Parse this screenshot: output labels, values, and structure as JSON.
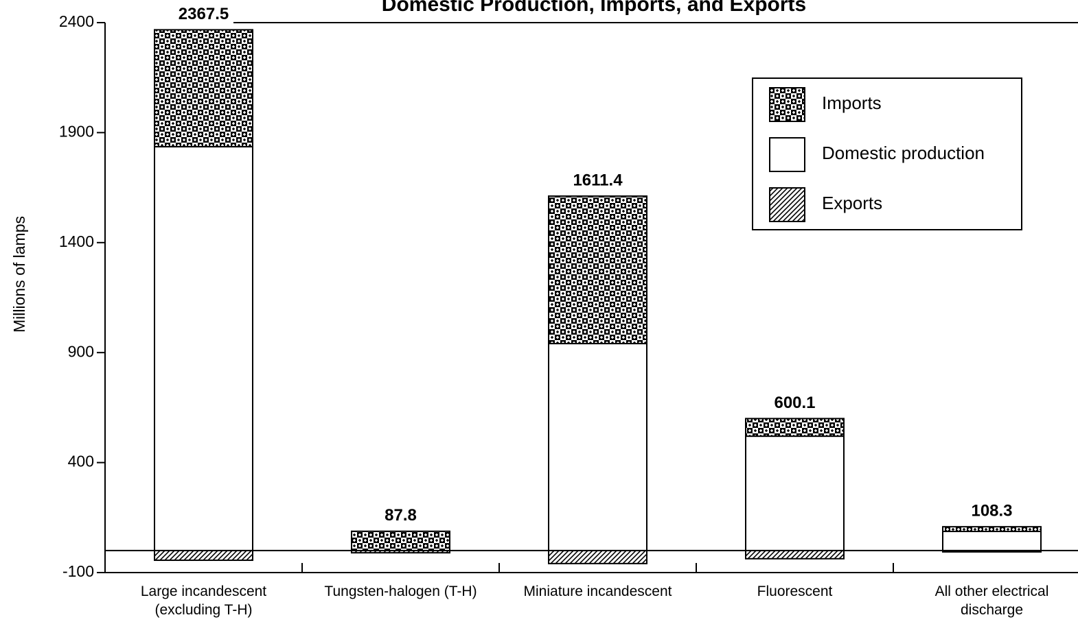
{
  "chart_data": {
    "type": "bar",
    "stacked": true,
    "title": "Domestic Production, Imports, and Exports",
    "y_label": "Millions of lamps",
    "categories": [
      "Large incandescent\n(excluding T-H)",
      "Tungsten-halogen (T-H)",
      "Miniature incandescent",
      "Fluorescent",
      "All other electrical\ndischarge"
    ],
    "series": [
      {
        "name": "Imports",
        "color": "#000000",
        "pattern": "checker",
        "values": [
          531.5,
          87.8,
          670.4,
          80.1,
          21.3
        ]
      },
      {
        "name": "Domestic production",
        "color": "#ffffff",
        "pattern": "none",
        "values": [
          1836,
          0,
          941,
          520,
          87
        ]
      },
      {
        "name": "Exports",
        "color": "#000000",
        "pattern": "diagonal",
        "values": [
          -44,
          -10,
          -59,
          -37,
          -6
        ]
      }
    ],
    "totals": [
      2367.5,
      87.8,
      1611.4,
      600.1,
      108.3
    ],
    "ylim": [
      -100,
      2400
    ],
    "yticks": [
      2400,
      1900,
      1400,
      900,
      400,
      -100
    ],
    "legend": "upper right"
  }
}
